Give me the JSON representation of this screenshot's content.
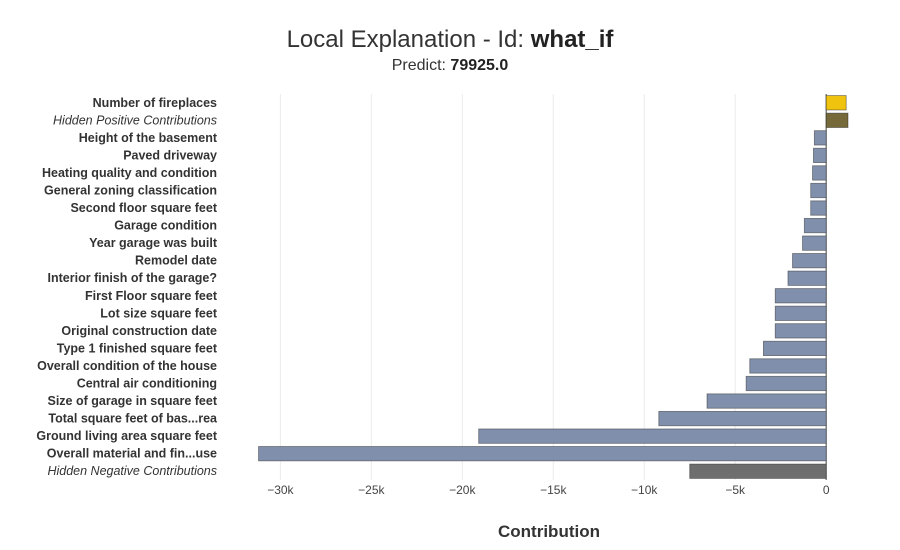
{
  "header": {
    "title_prefix": "Local Explanation - Id: ",
    "title_id": "what_if",
    "subtitle_prefix": "Predict: ",
    "subtitle_value": "79925.0"
  },
  "chart_data": {
    "type": "bar",
    "orientation": "horizontal",
    "xlabel": "Contribution",
    "xlim": [
      -32000,
      1200
    ],
    "xticks": [
      -30000,
      -25000,
      -20000,
      -15000,
      -10000,
      -5000,
      0
    ],
    "xtick_labels": [
      "−30k",
      "−25k",
      "−20k",
      "−15k",
      "−10k",
      "−5k",
      "0"
    ],
    "grid": true,
    "colors": {
      "positive": "#f0c30f",
      "hidden_positive": "#76693a",
      "negative": "#8090ac",
      "hidden_negative": "#6e6e6e"
    },
    "bars": [
      {
        "label": "Number of fireplaces",
        "value": 1100,
        "kind": "positive",
        "italic": false
      },
      {
        "label": "Hidden Positive Contributions",
        "value": 1200,
        "kind": "hidden_positive",
        "italic": true
      },
      {
        "label": "Height of the basement",
        "value": -650,
        "kind": "negative",
        "italic": false
      },
      {
        "label": "Paved driveway",
        "value": -700,
        "kind": "negative",
        "italic": false
      },
      {
        "label": "Heating quality and condition",
        "value": -750,
        "kind": "negative",
        "italic": false
      },
      {
        "label": "General zoning classification",
        "value": -850,
        "kind": "negative",
        "italic": false
      },
      {
        "label": "Second floor square feet",
        "value": -850,
        "kind": "negative",
        "italic": false
      },
      {
        "label": "Garage condition",
        "value": -1200,
        "kind": "negative",
        "italic": false
      },
      {
        "label": "Year garage was built",
        "value": -1300,
        "kind": "negative",
        "italic": false
      },
      {
        "label": "Remodel date",
        "value": -1850,
        "kind": "negative",
        "italic": false
      },
      {
        "label": "Interior finish of the garage?",
        "value": -2100,
        "kind": "negative",
        "italic": false
      },
      {
        "label": "First Floor square feet",
        "value": -2800,
        "kind": "negative",
        "italic": false
      },
      {
        "label": "Lot size square feet",
        "value": -2800,
        "kind": "negative",
        "italic": false
      },
      {
        "label": "Original construction date",
        "value": -2800,
        "kind": "negative",
        "italic": false
      },
      {
        "label": "Type 1 finished square feet",
        "value": -3450,
        "kind": "negative",
        "italic": false
      },
      {
        "label": "Overall condition of the house",
        "value": -4200,
        "kind": "negative",
        "italic": false
      },
      {
        "label": "Central air conditioning",
        "value": -4400,
        "kind": "negative",
        "italic": false
      },
      {
        "label": "Size of garage in square feet",
        "value": -6550,
        "kind": "negative",
        "italic": false
      },
      {
        "label": "Total square feet of bas...rea",
        "value": -9200,
        "kind": "negative",
        "italic": false
      },
      {
        "label": "Ground living area square feet",
        "value": -19100,
        "kind": "negative",
        "italic": false
      },
      {
        "label": "Overall material and fin...use",
        "value": -31200,
        "kind": "negative",
        "italic": false
      },
      {
        "label": "Hidden Negative Contributions",
        "value": -7500,
        "kind": "hidden_negative",
        "italic": true
      }
    ]
  }
}
